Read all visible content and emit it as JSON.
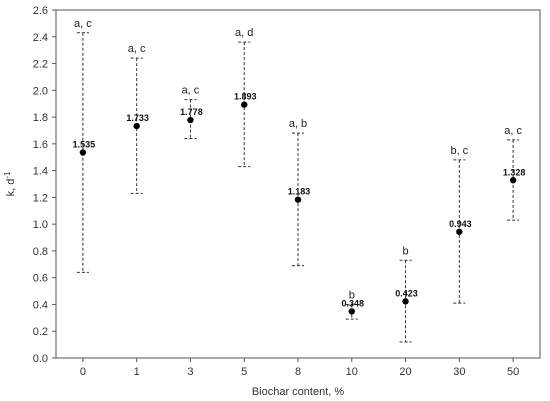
{
  "chart_data": {
    "type": "scatter",
    "title": "",
    "xlabel": "Biochar content, %",
    "ylabel": "k, d",
    "ylabel_sup": "-1",
    "ylim": [
      0.0,
      2.6
    ],
    "yticks": [
      "0.0",
      "0.2",
      "0.4",
      "0.6",
      "0.8",
      "1.0",
      "1.2",
      "1.4",
      "1.6",
      "1.8",
      "2.0",
      "2.2",
      "2.4",
      "2.6"
    ],
    "grid": false,
    "categories": [
      "0",
      "1",
      "3",
      "5",
      "8",
      "10",
      "20",
      "30",
      "50"
    ],
    "values": [
      1.535,
      1.733,
      1.778,
      1.893,
      1.183,
      0.348,
      0.423,
      0.943,
      1.328
    ],
    "value_labels": [
      "1.535",
      "1.733",
      "1.778",
      "1.893",
      "1.183",
      "0.348",
      "0.423",
      "0.943",
      "1.328"
    ],
    "err_upper": [
      2.43,
      2.24,
      1.93,
      2.36,
      1.68,
      0.4,
      0.73,
      1.48,
      1.63
    ],
    "err_lower": [
      0.64,
      1.23,
      1.64,
      1.43,
      0.69,
      0.29,
      0.12,
      0.41,
      1.03
    ],
    "group_letters": [
      "a, c",
      "a, c",
      "a, c",
      "a, d",
      "a, b",
      "b",
      "b",
      "b, c",
      "a, c"
    ]
  }
}
